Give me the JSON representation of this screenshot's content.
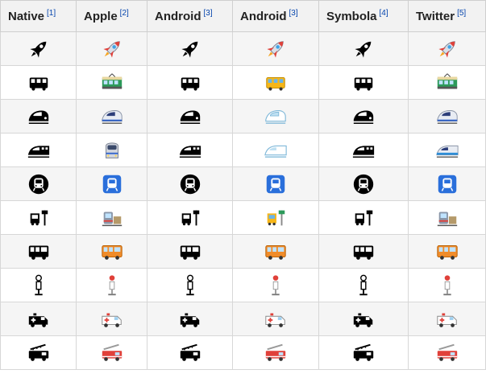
{
  "table": {
    "headers": [
      {
        "label": "Native",
        "ref": "[1]"
      },
      {
        "label": "Apple",
        "ref": "[2]"
      },
      {
        "label": "Android",
        "ref": "[3]"
      },
      {
        "label": "Android",
        "ref": "[3]"
      },
      {
        "label": "Symbola",
        "ref": "[4]"
      },
      {
        "label": "Twitter",
        "ref": "[5]"
      }
    ],
    "rows": [
      {
        "name": "rocket",
        "cells": [
          "rocket-black",
          "rocket-color",
          "rocket-black",
          "rocket-color",
          "rocket-black",
          "rocket-color"
        ]
      },
      {
        "name": "bus",
        "cells": [
          "bus-black",
          "tram-car-color",
          "bus-black",
          "bus-color",
          "bus-black",
          "tram-car-color"
        ]
      },
      {
        "name": "high-speed-train",
        "cells": [
          "high-speed-train-black",
          "high-speed-train-color",
          "high-speed-train-black",
          "high-speed-train-outline",
          "high-speed-train-black",
          "high-speed-train-color"
        ]
      },
      {
        "name": "bullet-train",
        "cells": [
          "bullet-train-black",
          "bullet-train-front-color",
          "bullet-train-black",
          "bullet-train-outline",
          "bullet-train-black",
          "bullet-train-color"
        ]
      },
      {
        "name": "metro",
        "cells": [
          "metro-black",
          "metro-color",
          "metro-black",
          "metro-color",
          "metro-black",
          "metro-color"
        ]
      },
      {
        "name": "bus-stop-train",
        "cells": [
          "bus-stop-black",
          "train-station-color",
          "bus-stop-black",
          "bus-stop-color",
          "bus-stop-black",
          "train-station-color"
        ]
      },
      {
        "name": "bus-side",
        "cells": [
          "bus-side-black",
          "bus-side-color",
          "bus-side-black",
          "bus-side-color",
          "bus-side-black",
          "bus-side-color"
        ]
      },
      {
        "name": "bus-stop-sign",
        "cells": [
          "stop-sign-black",
          "stop-sign-color",
          "stop-sign-black",
          "stop-sign-color",
          "stop-sign-black",
          "stop-sign-color"
        ]
      },
      {
        "name": "ambulance",
        "cells": [
          "ambulance-black",
          "ambulance-color",
          "ambulance-black",
          "ambulance-color",
          "ambulance-black",
          "ambulance-color"
        ]
      },
      {
        "name": "fire-engine",
        "cells": [
          "fire-engine-black",
          "fire-engine-color",
          "fire-engine-black",
          "fire-engine-color",
          "fire-engine-black",
          "fire-engine-color"
        ]
      }
    ]
  },
  "colors": {
    "ref_link": "#0645ad",
    "header_bg": "#f2f2f2",
    "band_bg": "#f5f5f5"
  }
}
